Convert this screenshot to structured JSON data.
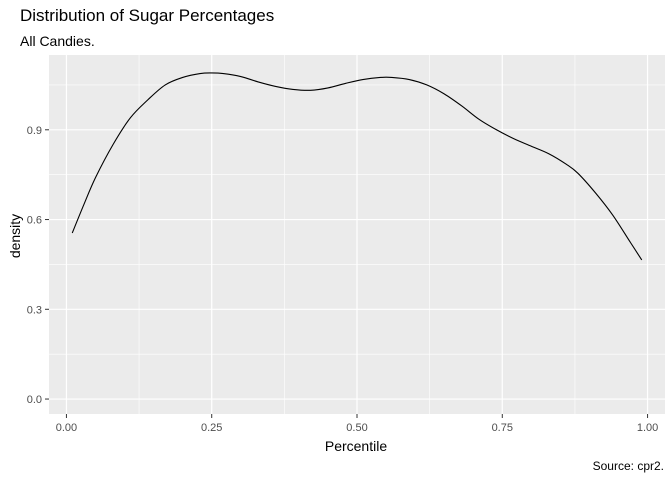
{
  "chart_data": {
    "type": "line",
    "title": "Distribution of Sugar Percentages",
    "subtitle": "All Candies.",
    "caption": "Source: cpr2.",
    "xlabel": "Percentile",
    "ylabel": "density",
    "xlim": [
      -0.03,
      1.03
    ],
    "ylim": [
      -0.05,
      1.15
    ],
    "x_ticks": [
      0.0,
      0.25,
      0.5,
      0.75,
      1.0
    ],
    "x_tick_labels": [
      "0.00",
      "0.25",
      "0.50",
      "0.75",
      "1.00"
    ],
    "y_ticks": [
      0.0,
      0.3,
      0.6,
      0.9
    ],
    "y_tick_labels": [
      "0.0",
      "0.3",
      "0.6",
      "0.9"
    ],
    "grid": true,
    "colors": {
      "panel": "#ebebeb",
      "grid": "#ffffff",
      "line": "#000000"
    },
    "series": [
      {
        "x": [
          0.01,
          0.03,
          0.05,
          0.08,
          0.11,
          0.14,
          0.17,
          0.2,
          0.23,
          0.25,
          0.27,
          0.3,
          0.33,
          0.36,
          0.39,
          0.42,
          0.45,
          0.48,
          0.51,
          0.54,
          0.56,
          0.59,
          0.62,
          0.65,
          0.68,
          0.71,
          0.74,
          0.77,
          0.8,
          0.83,
          0.86,
          0.88,
          0.91,
          0.94,
          0.97,
          0.99
        ],
        "y": [
          0.555,
          0.65,
          0.74,
          0.85,
          0.94,
          1.0,
          1.05,
          1.075,
          1.088,
          1.09,
          1.088,
          1.078,
          1.06,
          1.045,
          1.035,
          1.032,
          1.04,
          1.055,
          1.068,
          1.075,
          1.075,
          1.068,
          1.05,
          1.02,
          0.98,
          0.935,
          0.9,
          0.87,
          0.845,
          0.82,
          0.785,
          0.755,
          0.69,
          0.615,
          0.525,
          0.465
        ]
      }
    ]
  }
}
